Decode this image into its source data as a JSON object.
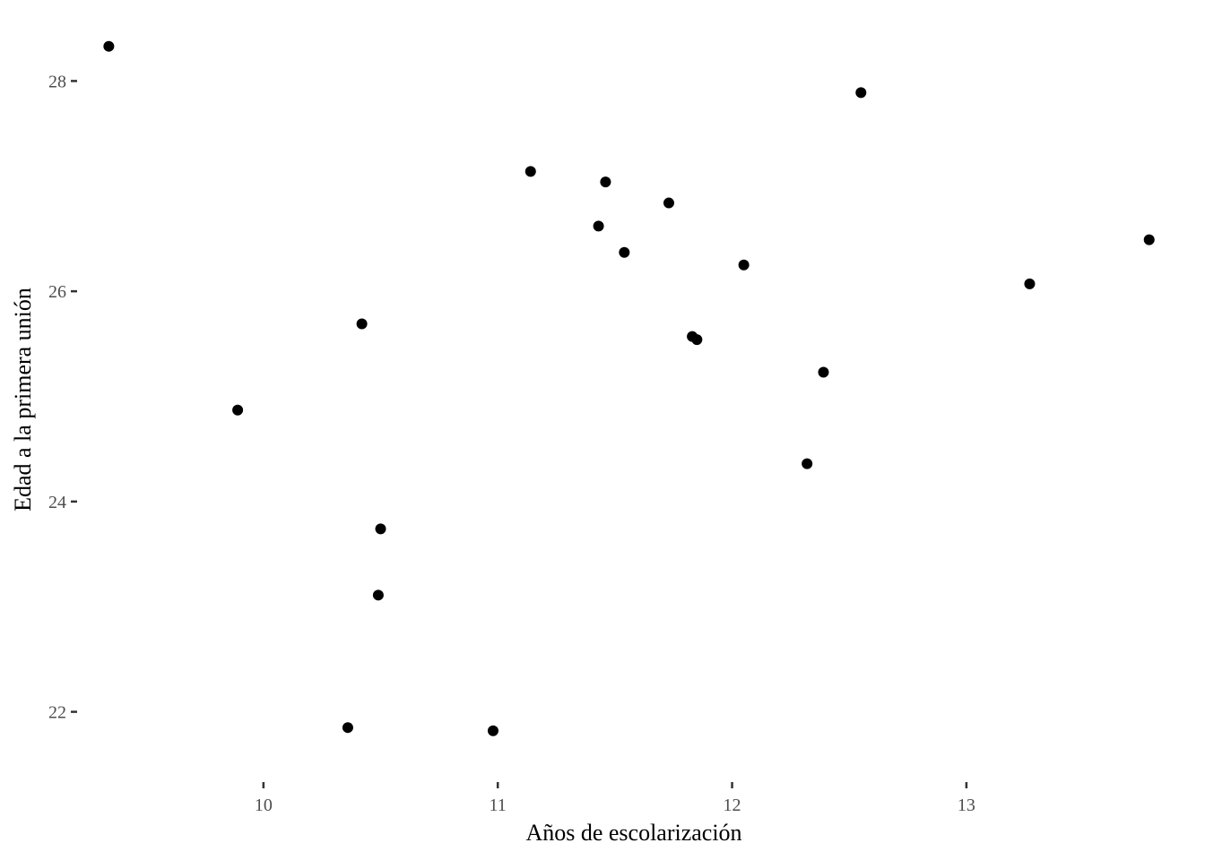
{
  "chart_data": {
    "type": "scatter",
    "title": "",
    "xlabel": "Años de escolarización",
    "ylabel": "Edad a la primera unión",
    "xlim": [
      9.22,
      13.98
    ],
    "ylim": [
      21.4,
      28.6
    ],
    "xticks": [
      10,
      11,
      12,
      13
    ],
    "yticks": [
      22,
      24,
      26,
      28
    ],
    "grid": false,
    "legend": "none",
    "color": "#000000",
    "series": [
      {
        "points": [
          {
            "x": 9.34,
            "y": 28.33
          },
          {
            "x": 9.89,
            "y": 24.87
          },
          {
            "x": 10.36,
            "y": 21.85
          },
          {
            "x": 10.42,
            "y": 25.69
          },
          {
            "x": 10.49,
            "y": 23.11
          },
          {
            "x": 10.5,
            "y": 23.74
          },
          {
            "x": 10.98,
            "y": 21.82
          },
          {
            "x": 11.14,
            "y": 27.14
          },
          {
            "x": 11.43,
            "y": 26.62
          },
          {
            "x": 11.46,
            "y": 27.04
          },
          {
            "x": 11.54,
            "y": 26.37
          },
          {
            "x": 11.73,
            "y": 26.84
          },
          {
            "x": 11.83,
            "y": 25.57
          },
          {
            "x": 11.85,
            "y": 25.54
          },
          {
            "x": 12.05,
            "y": 26.25
          },
          {
            "x": 12.32,
            "y": 24.36
          },
          {
            "x": 12.39,
            "y": 25.23
          },
          {
            "x": 12.55,
            "y": 27.89
          },
          {
            "x": 13.27,
            "y": 26.07
          },
          {
            "x": 13.78,
            "y": 26.49
          }
        ]
      }
    ]
  }
}
